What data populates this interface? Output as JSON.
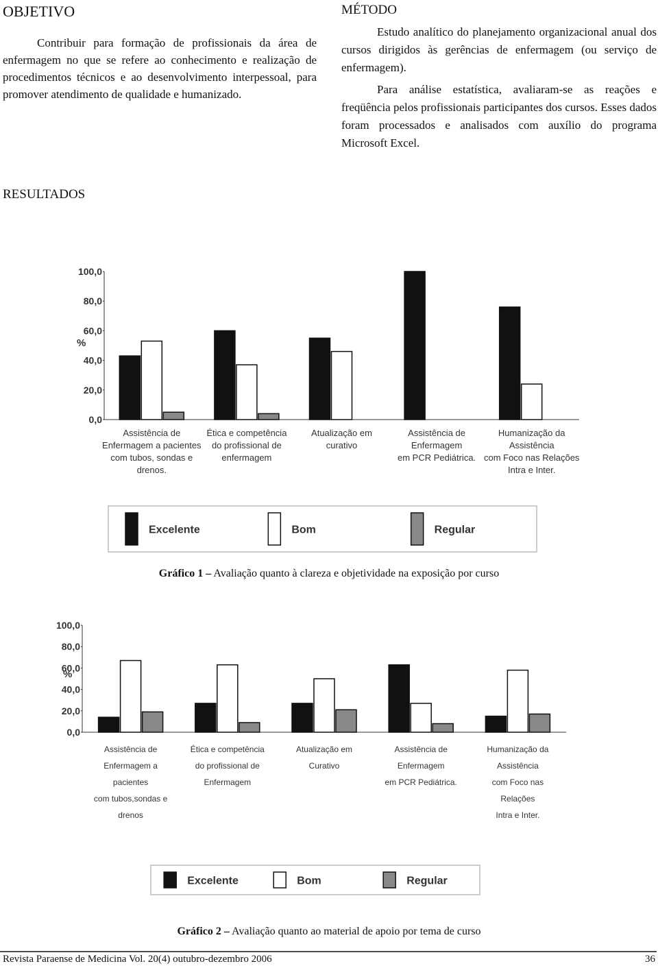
{
  "objetivo": {
    "title": "OBJETIVO",
    "text": "Contribuir para formação de profissionais da área de enfermagem no que se refere ao conhecimento e realização de procedimentos técnicos e ao desenvolvimento interpessoal, para promover atendimento de qualidade e humanizado."
  },
  "metodo": {
    "title": "MÉTODO",
    "paragraphs": [
      "Estudo analítico do planejamento organizacional anual dos cursos dirigidos às gerências de enfermagem (ou serviço de enfermagem).",
      "Para análise estatística, avaliaram-se as reações e freqüência pelos profissionais participantes dos cursos. Esses dados foram processados e analisados com auxílio do programa Microsoft Excel."
    ]
  },
  "resultados": {
    "title": "RESULTADOS"
  },
  "chart_data": [
    {
      "type": "bar",
      "caption_label": "Gráfico 1 –",
      "caption": "Avaliação quanto à clareza e objetividade na exposição por curso",
      "ylabel": "%",
      "categories": [
        [
          "Assistência de",
          "Enfermagem a pacientes",
          "com tubos, sondas e",
          "drenos."
        ],
        [
          "Ética e competência",
          "do profissional de",
          "enfermagem"
        ],
        [
          "Atualização em",
          "curativo"
        ],
        [
          "Assistência de",
          "Enfermagem",
          "em PCR Pediátrica."
        ],
        [
          "Humanização da",
          "Assistência",
          "com Foco nas Relações",
          "Intra e Inter."
        ]
      ],
      "series": [
        {
          "name": "Excelente",
          "color": "#111111",
          "values": [
            43,
            60,
            55,
            100,
            76
          ]
        },
        {
          "name": "Bom",
          "color": "#ffffff",
          "values": [
            53,
            37,
            46,
            null,
            24
          ]
        },
        {
          "name": "Regular",
          "color": "#888888",
          "values": [
            5,
            4,
            null,
            null,
            null
          ]
        }
      ],
      "ylim": [
        0,
        100
      ],
      "yticks": [
        {
          "value": 0,
          "label": "0,0"
        },
        {
          "value": 20,
          "label": "20,0"
        },
        {
          "value": 40,
          "label": "40,0"
        },
        {
          "value": 60,
          "label": "60,0"
        },
        {
          "value": 80,
          "label": "80,0"
        },
        {
          "value": 100,
          "label": "100,0"
        }
      ],
      "legend": "bottom",
      "grid": false
    },
    {
      "type": "bar",
      "caption_label": "Gráfico 2 –",
      "caption": "Avaliação quanto ao material de apoio por tema de curso",
      "ylabel": "%",
      "categories": [
        [
          "Assistência de",
          "Enfermagem a",
          "pacientes",
          "com tubos,sondas e",
          "drenos"
        ],
        [
          "Ética e competência",
          "do profissional de",
          "Enfermagem"
        ],
        [
          "Atualização em",
          "Curativo"
        ],
        [
          "Assistência de",
          "Enfermagem",
          "em PCR Pediátrica."
        ],
        [
          "Humanização da",
          "Assistência",
          "com Foco nas",
          "Relações",
          "Intra e Inter."
        ]
      ],
      "series": [
        {
          "name": "Excelente",
          "color": "#111111",
          "values": [
            14,
            27,
            27,
            63,
            15
          ]
        },
        {
          "name": "Bom",
          "color": "#ffffff",
          "values": [
            67,
            63,
            50,
            27,
            58
          ]
        },
        {
          "name": "Regular",
          "color": "#888888",
          "values": [
            19,
            9,
            21,
            8,
            17
          ]
        }
      ],
      "ylim": [
        0,
        100
      ],
      "yticks": [
        {
          "value": 0,
          "label": "0,0"
        },
        {
          "value": 20,
          "label": "20,0"
        },
        {
          "value": 40,
          "label": "40,0"
        },
        {
          "value": 60,
          "label": "60,0"
        },
        {
          "value": 80,
          "label": "80,0"
        },
        {
          "value": 100,
          "label": "100,0"
        }
      ],
      "legend": "bottom",
      "grid": false
    }
  ],
  "footer": {
    "journal": "Revista Paraense de Medicina Vol. 20(4) outubro-dezembro 2006",
    "page": "36"
  }
}
